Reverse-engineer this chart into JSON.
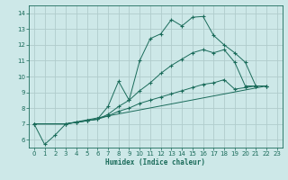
{
  "xlabel": "Humidex (Indice chaleur)",
  "bg_color": "#cde8e8",
  "grid_color": "#b0cccc",
  "line_color": "#1a6b5a",
  "xlim": [
    -0.5,
    23.5
  ],
  "ylim": [
    5.5,
    14.5
  ],
  "xticks": [
    0,
    1,
    2,
    3,
    4,
    5,
    6,
    7,
    8,
    9,
    10,
    11,
    12,
    13,
    14,
    15,
    16,
    17,
    18,
    19,
    20,
    21,
    22,
    23
  ],
  "yticks": [
    6,
    7,
    8,
    9,
    10,
    11,
    12,
    13,
    14
  ],
  "series1_x": [
    0,
    1,
    2,
    3,
    4,
    5,
    6,
    7,
    8,
    9,
    10,
    11,
    12,
    13,
    14,
    15,
    16,
    17,
    18,
    19,
    20,
    21,
    22
  ],
  "series1_y": [
    7.0,
    5.7,
    6.3,
    7.0,
    7.1,
    7.2,
    7.3,
    8.1,
    9.7,
    8.5,
    11.0,
    12.4,
    12.7,
    13.6,
    13.2,
    13.75,
    13.8,
    12.6,
    12.0,
    11.5,
    10.9,
    9.4,
    9.4
  ],
  "series2_x": [
    0,
    3,
    4,
    5,
    6,
    7,
    8,
    9,
    10,
    11,
    12,
    13,
    14,
    15,
    16,
    17,
    18,
    19,
    20,
    21,
    22
  ],
  "series2_y": [
    7.0,
    7.0,
    7.1,
    7.2,
    7.3,
    7.6,
    8.1,
    8.5,
    9.1,
    9.6,
    10.2,
    10.7,
    11.1,
    11.5,
    11.7,
    11.5,
    11.7,
    10.9,
    9.4,
    9.4,
    9.4
  ],
  "series3_x": [
    0,
    3,
    22
  ],
  "series3_y": [
    7.0,
    7.0,
    9.4
  ],
  "series4_x": [
    0,
    3,
    4,
    5,
    6,
    7,
    8,
    9,
    10,
    11,
    12,
    13,
    14,
    15,
    16,
    17,
    18,
    19,
    20,
    21,
    22
  ],
  "series4_y": [
    7.0,
    7.0,
    7.1,
    7.2,
    7.3,
    7.5,
    7.8,
    8.0,
    8.3,
    8.5,
    8.7,
    8.9,
    9.1,
    9.3,
    9.5,
    9.6,
    9.8,
    9.2,
    9.3,
    9.4,
    9.4
  ]
}
